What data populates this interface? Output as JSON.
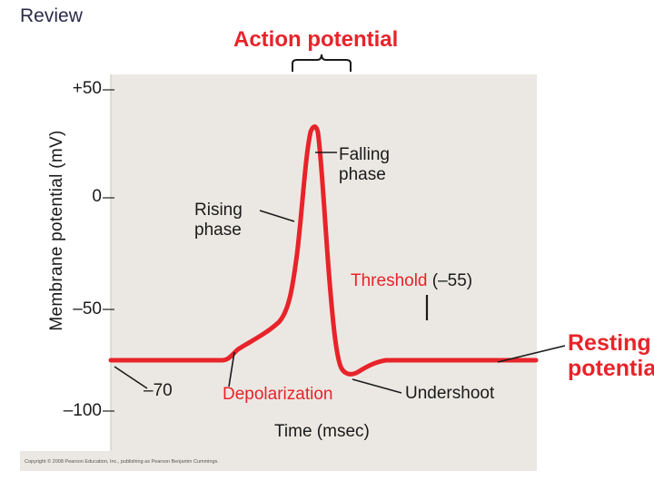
{
  "header": {
    "tag": "Review"
  },
  "diagram": {
    "title": "Action potential",
    "y_axis": {
      "label": "Membrane potential (mV)",
      "ticks": [
        "+50",
        "0",
        "–50",
        "–100"
      ]
    },
    "x_axis": {
      "label": "Time (msec)"
    },
    "labels": {
      "falling_line1": "Falling",
      "falling_line2": "phase",
      "rising_line1": "Rising",
      "rising_line2": "phase",
      "threshold_word": "Threshold",
      "threshold_value": "(–55)",
      "minus70": "–70",
      "depolarization": "Depolarization",
      "undershoot": "Undershoot",
      "resting_line1": "Resting",
      "resting_line2": "potential"
    },
    "colors": {
      "trace": "#e8232a",
      "panel": "#ebe8e3",
      "accent_text": "#e8232a"
    }
  },
  "footer": {
    "copyright": "Copyright © 2008 Pearson Education, Inc., publishing as Pearson Benjamin Cummings."
  }
}
